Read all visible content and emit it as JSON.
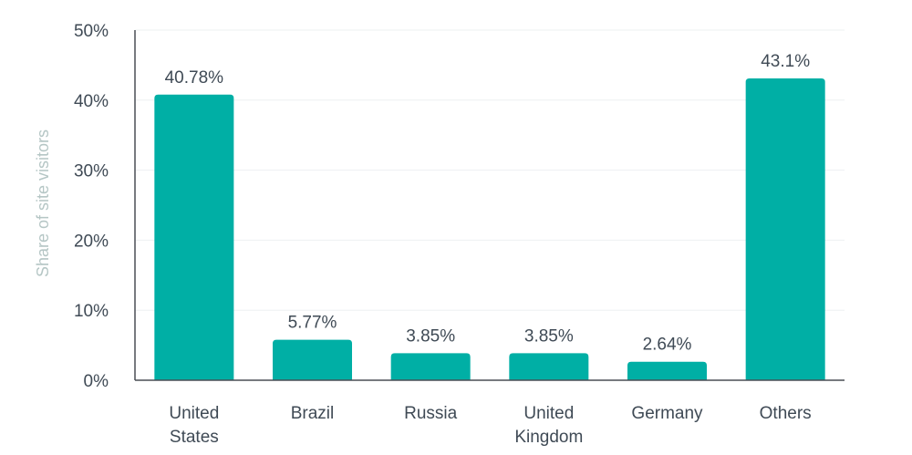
{
  "chart_data": {
    "type": "bar",
    "categories": [
      [
        "United",
        "States"
      ],
      [
        "Brazil"
      ],
      [
        "Russia"
      ],
      [
        "United",
        "Kingdom"
      ],
      [
        "Germany"
      ],
      [
        "Others"
      ]
    ],
    "values": [
      40.78,
      5.77,
      3.85,
      3.85,
      2.64,
      43.1
    ],
    "data_labels": [
      "40.78%",
      "5.77%",
      "3.85%",
      "3.85%",
      "2.64%",
      "43.1%"
    ],
    "title": "",
    "xlabel": "",
    "ylabel": "Share of site visitors",
    "ylim": [
      0,
      50
    ],
    "yticks": [
      {
        "value": 0,
        "label": "0%"
      },
      {
        "value": 10,
        "label": "10%"
      },
      {
        "value": 20,
        "label": "20%"
      },
      {
        "value": 30,
        "label": "30%"
      },
      {
        "value": 40,
        "label": "40%"
      },
      {
        "value": 50,
        "label": "50%"
      }
    ],
    "grid": true,
    "bar_color": "#00afa5",
    "ylabel_color": "#b5c6c5"
  }
}
